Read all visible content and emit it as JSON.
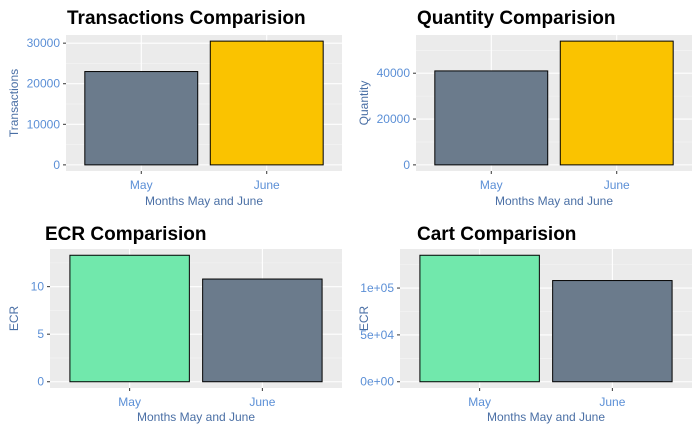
{
  "chart_data": [
    {
      "type": "bar",
      "title": "Transactions Comparision",
      "xlabel": "Months May and June",
      "ylabel": "Transactions",
      "categories": [
        "May",
        "June"
      ],
      "values": [
        23000,
        30500
      ],
      "colors": [
        "#6b7b8c",
        "#fac300"
      ],
      "ylim": [
        0,
        30500
      ],
      "yticks": [
        0,
        10000,
        20000,
        30000
      ],
      "ytick_labels": [
        "0",
        "10000",
        "20000",
        "30000"
      ],
      "grid": true
    },
    {
      "type": "bar",
      "title": "Quantity Comparision",
      "xlabel": "Months May and June",
      "ylabel": "Quantity",
      "categories": [
        "May",
        "June"
      ],
      "values": [
        41000,
        54000
      ],
      "colors": [
        "#6b7b8c",
        "#fac300"
      ],
      "ylim": [
        0,
        54000
      ],
      "yticks": [
        0,
        20000,
        40000
      ],
      "ytick_labels": [
        "0",
        "20000",
        "40000"
      ],
      "grid": true
    },
    {
      "type": "bar",
      "title": "ECR Comparision",
      "xlabel": "Months May and June",
      "ylabel": "ECR",
      "categories": [
        "May",
        "June"
      ],
      "values": [
        13.3,
        10.8
      ],
      "colors": [
        "#71e8ac",
        "#6b7b8c"
      ],
      "ylim": [
        0,
        13.3
      ],
      "yticks": [
        0,
        5,
        10
      ],
      "ytick_labels": [
        "0",
        "5",
        "10"
      ],
      "grid": true
    },
    {
      "type": "bar",
      "title": "Cart Comparision",
      "xlabel": "Months May and June",
      "ylabel": "ECR",
      "categories": [
        "May",
        "June"
      ],
      "values": [
        135000,
        108000
      ],
      "colors": [
        "#71e8ac",
        "#6b7b8c"
      ],
      "ylim": [
        0,
        135000
      ],
      "yticks": [
        0,
        50000,
        100000
      ],
      "ytick_labels": [
        "0e+00",
        "5e+04",
        "1e+05"
      ],
      "grid": true
    }
  ]
}
